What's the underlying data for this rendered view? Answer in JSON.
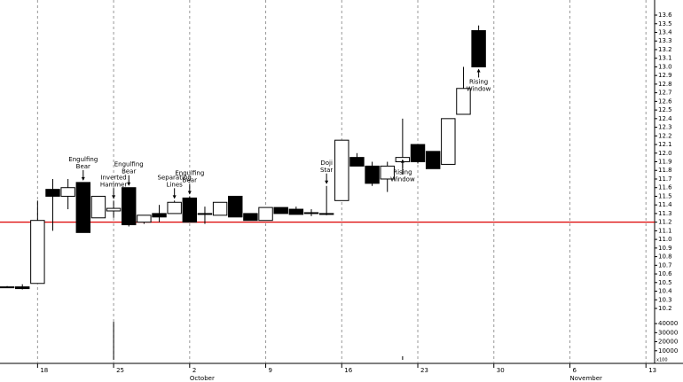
{
  "chart_data": {
    "type": "candlestick",
    "x": [
      0,
      1,
      2,
      3,
      4,
      5,
      6,
      7,
      8,
      9,
      10,
      11,
      12,
      13,
      14,
      15,
      16,
      17,
      18,
      19,
      20,
      21,
      22,
      23,
      24,
      25,
      26,
      27,
      28,
      29,
      30,
      31
    ],
    "open": [
      10.45,
      10.45,
      10.49,
      11.58,
      11.5,
      11.66,
      11.25,
      11.33,
      11.6,
      11.2,
      11.3,
      11.3,
      11.48,
      11.3,
      11.28,
      11.5,
      11.3,
      11.22,
      11.37,
      11.35,
      11.31,
      11.3,
      11.45,
      11.95,
      11.85,
      11.7,
      11.9,
      12.1,
      12.02,
      11.87,
      12.45,
      13.42
    ],
    "high": [
      10.46,
      10.48,
      11.45,
      11.7,
      11.7,
      11.66,
      11.5,
      11.45,
      11.6,
      11.28,
      11.4,
      11.45,
      11.5,
      11.38,
      11.43,
      11.5,
      11.3,
      11.37,
      11.37,
      11.38,
      11.35,
      11.62,
      12.15,
      12.0,
      11.9,
      11.9,
      12.4,
      12.1,
      12.02,
      12.4,
      13.0,
      13.48
    ],
    "low": [
      10.44,
      10.42,
      10.49,
      11.1,
      11.35,
      11.08,
      11.25,
      11.25,
      11.15,
      11.18,
      11.2,
      11.3,
      11.2,
      11.18,
      11.28,
      11.26,
      11.22,
      11.22,
      11.3,
      11.29,
      11.27,
      11.28,
      11.45,
      11.85,
      11.62,
      11.55,
      11.75,
      11.88,
      11.82,
      11.87,
      12.45,
      13.0
    ],
    "close": [
      10.45,
      10.43,
      11.22,
      11.5,
      11.6,
      11.08,
      11.5,
      11.36,
      11.17,
      11.28,
      11.26,
      11.43,
      11.2,
      11.3,
      11.43,
      11.26,
      11.22,
      11.37,
      11.3,
      11.29,
      11.3,
      11.3,
      12.15,
      11.85,
      11.65,
      11.85,
      11.95,
      11.9,
      11.82,
      12.4,
      12.75,
      13.0
    ],
    "volume": [
      null,
      null,
      null,
      null,
      null,
      null,
      null,
      42000,
      null,
      null,
      null,
      null,
      null,
      null,
      null,
      null,
      null,
      null,
      null,
      null,
      null,
      null,
      null,
      null,
      null,
      null,
      4000,
      null,
      null,
      null,
      null,
      null
    ],
    "up_color": "#ffffff",
    "down_color": "#000000",
    "xlim": [
      -0.47,
      42.57
    ],
    "xticks": [
      {
        "value": 2,
        "label": "18"
      },
      {
        "value": 7,
        "label": "25"
      },
      {
        "value": 12,
        "label": "2"
      },
      {
        "value": 17,
        "label": "9"
      },
      {
        "value": 22,
        "label": "16"
      },
      {
        "value": 27,
        "label": "23"
      },
      {
        "value": 32,
        "label": "30"
      },
      {
        "value": 37,
        "label": "6"
      },
      {
        "value": 42,
        "label": "13"
      }
    ],
    "month_labels": [
      {
        "value": 12,
        "label": "October"
      },
      {
        "value": 37,
        "label": "November"
      }
    ],
    "ylim": [
      10.128,
      13.775
    ],
    "yticks": [
      10.2,
      10.3,
      10.4,
      10.5,
      10.6,
      10.7,
      10.8,
      10.9,
      {
        "value": 11,
        "label": "11.0"
      },
      11.1,
      11.2,
      11.3,
      11.4,
      11.5,
      11.6,
      11.7,
      11.8,
      11.9,
      {
        "value": 12,
        "label": "12.0"
      },
      12.1,
      12.2,
      12.3,
      12.4,
      12.5,
      12.6,
      12.7,
      12.8,
      12.9,
      {
        "value": 13,
        "label": "13.0"
      },
      13.1,
      13.2,
      13.3,
      13.4,
      13.5,
      13.6
    ],
    "y2lim": [
      0,
      45000
    ],
    "y2ticks": [
      10000,
      20000,
      30000,
      40000
    ],
    "volume_unit": "x100",
    "reference_line": {
      "value": 11.2,
      "color": "#dd0000"
    },
    "grid": true,
    "annotations": [
      {
        "text": [
          "Engulfing",
          "Bear"
        ],
        "x": 5,
        "y": 11.66,
        "arrow": "down"
      },
      {
        "text": [
          "Inverted",
          "Hammer"
        ],
        "x": 7,
        "y": 11.45,
        "arrow": "down"
      },
      {
        "text": [
          "Engulfing",
          "Bear"
        ],
        "x": 8,
        "y": 11.6,
        "arrow": "down"
      },
      {
        "text": [
          "Separating",
          "Lines"
        ],
        "x": 11,
        "y": 11.45,
        "arrow": "down"
      },
      {
        "text": [
          "Engulfing",
          "Bear"
        ],
        "x": 12,
        "y": 11.5,
        "arrow": "down"
      },
      {
        "text": [
          "Doji",
          "Star"
        ],
        "x": 21,
        "y": 11.62,
        "arrow": "down"
      },
      {
        "text": [
          "Rising",
          "Window"
        ],
        "x": 26,
        "y": 11.95,
        "arrow": "up"
      },
      {
        "text": [
          "Rising",
          "Window"
        ],
        "x": 31,
        "y": 13.0,
        "arrow": "up"
      }
    ]
  }
}
